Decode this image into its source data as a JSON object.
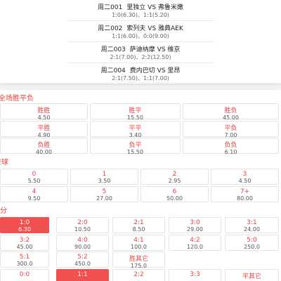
{
  "matches": [
    {
      "code": "周二001",
      "teams": "里独立 VS 弗鲁米嫩",
      "odds": "1:0(6.30)、1:1(5.20)"
    },
    {
      "code": "周二002",
      "teams": "索列夫 VS 雅典AEK",
      "odds": "1:1(6.00)、0:0(9.00)"
    },
    {
      "code": "周二003",
      "teams": "萨迪纳摩 VS 维京",
      "odds": "2:1(7.00)、2:2(12.50)"
    },
    {
      "code": "周二004",
      "teams": "费内巴切 VS 里昂",
      "odds": "2:1(7.50)、1:1(7.00)"
    }
  ],
  "sections": [
    {
      "heading": "全场胜平负",
      "cells": [
        {
          "label": "胜胜",
          "odds": "4.50"
        },
        {
          "label": "胜平",
          "odds": "15.50"
        },
        {
          "label": "胜负",
          "odds": "45.00"
        },
        {
          "label": "平胜",
          "odds": "4.90"
        },
        {
          "label": "平平",
          "odds": "3.40"
        },
        {
          "label": "平负",
          "odds": "7.00"
        },
        {
          "label": "负胜",
          "odds": "40.00"
        },
        {
          "label": "负平",
          "odds": "15.50"
        },
        {
          "label": "负负",
          "odds": "6.10"
        }
      ]
    },
    {
      "heading": "进球",
      "cells": [
        {
          "label": "0",
          "odds": "5.50"
        },
        {
          "label": "1",
          "odds": "3.50"
        },
        {
          "label": "2",
          "odds": "2.95"
        },
        {
          "label": "3",
          "odds": "4.50"
        },
        {
          "label": "4",
          "odds": "9.50"
        },
        {
          "label": "5",
          "odds": "27.00"
        },
        {
          "label": "6",
          "odds": "50.00"
        },
        {
          "label": "7+",
          "odds": "80.00"
        }
      ]
    },
    {
      "heading": "比分",
      "cells": [
        {
          "label": "1:0",
          "odds": "6.30",
          "selected": true
        },
        {
          "label": "2:0",
          "odds": "10.50"
        },
        {
          "label": "2:1",
          "odds": "8.50"
        },
        {
          "label": "3:0",
          "odds": "29.00"
        },
        {
          "label": "3:1",
          "odds": "24.00"
        },
        {
          "label": "3:2",
          "odds": "45.00"
        },
        {
          "label": "4:0",
          "odds": "90.00"
        },
        {
          "label": "4:1",
          "odds": "100.0"
        },
        {
          "label": "4:2",
          "odds": "120.0"
        },
        {
          "label": "5:0",
          "odds": "250.0"
        },
        {
          "label": "5:1",
          "odds": "300.0"
        },
        {
          "label": "5:2",
          "odds": "450.0"
        },
        {
          "label": "胜其它",
          "odds": "175.0"
        },
        {
          "label": "0:0"
        },
        {
          "label": "1:1",
          "selected": true
        },
        {
          "label": "2:2"
        },
        {
          "label": "3:3"
        },
        {
          "label": "平其它"
        }
      ]
    }
  ]
}
